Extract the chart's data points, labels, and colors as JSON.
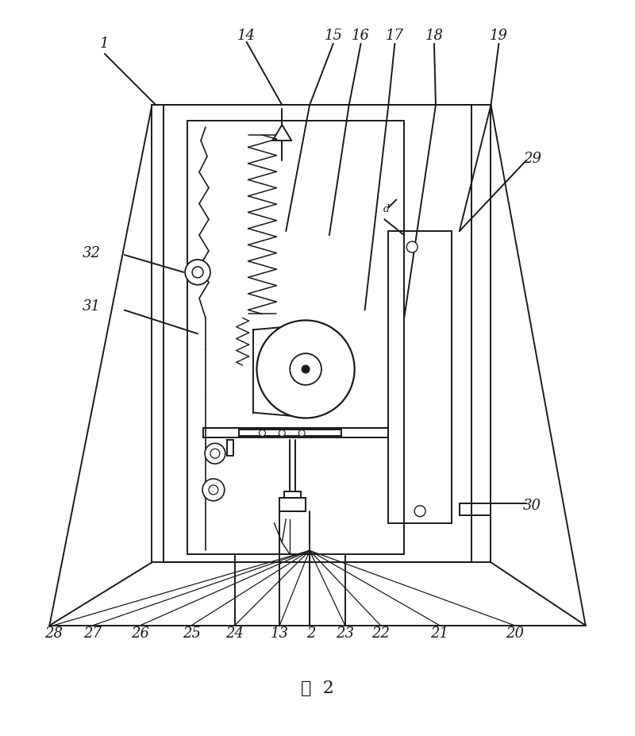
{
  "title": "图  2",
  "bg_color": "#ffffff",
  "line_color": "#1a1a1a",
  "fig_width": 8.0,
  "fig_height": 9.27
}
